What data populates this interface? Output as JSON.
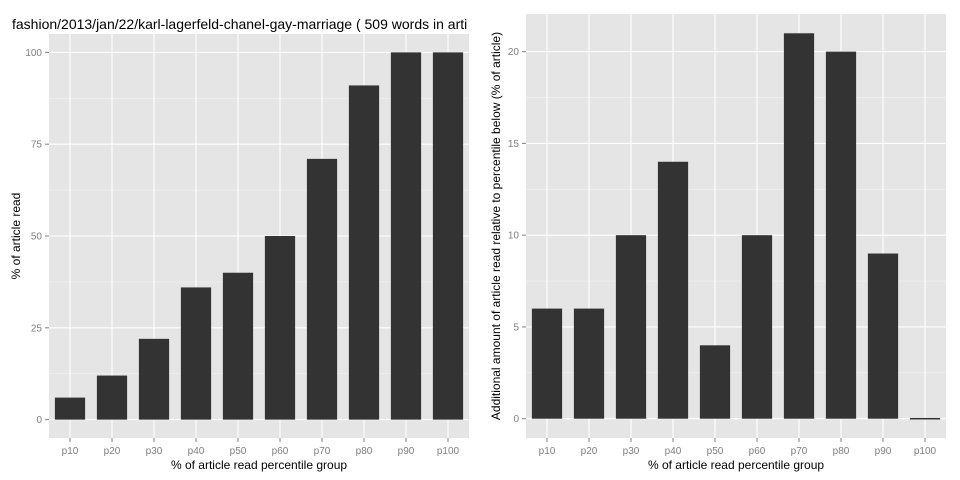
{
  "chart_data": [
    {
      "type": "bar",
      "title": "fashion/2013/jan/22/karl-lagerfeld-chanel-gay-marriage ( 509 words in arti",
      "xlabel": "% of article read percentile group",
      "ylabel": "% of article read",
      "categories": [
        "p10",
        "p20",
        "p30",
        "p40",
        "p50",
        "p60",
        "p70",
        "p80",
        "p90",
        "p100"
      ],
      "values": [
        6,
        12,
        22,
        36,
        40,
        50,
        71,
        91,
        100,
        100
      ],
      "ylim": [
        -5,
        105
      ],
      "yticks": [
        0,
        25,
        50,
        75,
        100
      ],
      "ytick_labels": [
        "0",
        "25",
        "50",
        "75",
        "100"
      ],
      "grid": true,
      "bar_color": "#333333",
      "panel_color": "#e5e5e5"
    },
    {
      "type": "bar",
      "title": "",
      "xlabel": "% of article read percentile group",
      "ylabel": "Additional amount of article read relative to percentile below (% of article)",
      "categories": [
        "p10",
        "p20",
        "p30",
        "p40",
        "p50",
        "p60",
        "p70",
        "p80",
        "p90",
        "p100"
      ],
      "values": [
        6,
        6,
        10,
        14,
        4,
        10,
        21,
        20,
        9,
        0
      ],
      "ylim": [
        -1.05,
        22.05
      ],
      "yticks": [
        0,
        5,
        10,
        15,
        20
      ],
      "ytick_labels": [
        "0",
        "5",
        "10",
        "15",
        "20"
      ],
      "grid": true,
      "bar_color": "#333333",
      "panel_color": "#e5e5e5"
    }
  ]
}
